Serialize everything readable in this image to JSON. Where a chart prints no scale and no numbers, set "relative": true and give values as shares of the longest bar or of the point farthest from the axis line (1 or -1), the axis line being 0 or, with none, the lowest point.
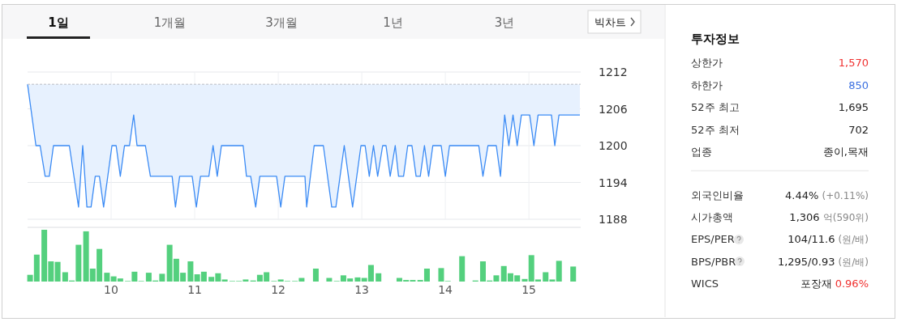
{
  "chart_data": [
    {
      "type": "other",
      "annotations": [
        "1일",
        "1개월",
        "3개월",
        "1년",
        "3년",
        "빅차트"
      ]
    },
    {
      "type": "line",
      "color": "#3b8bf5",
      "xlim": [
        9,
        15.62
      ],
      "xticks": [
        10,
        11,
        12,
        13,
        14,
        15
      ],
      "ylim": [
        1188,
        1212
      ],
      "yticks": [
        1188,
        1194,
        1200,
        1206,
        1212
      ],
      "grid": true,
      "tick_labels": "y",
      "ref_lines": [
        {
          "axis": "y",
          "value": 1210,
          "line_style": "dashed",
          "color": "#b8bcc4"
        }
      ],
      "x": [
        9.0,
        9.1,
        9.15,
        9.21,
        9.26,
        9.31,
        9.5,
        9.61,
        9.66,
        9.71,
        9.76,
        9.81,
        9.86,
        9.91,
        10.01,
        10.06,
        10.11,
        10.16,
        10.22,
        10.27,
        10.31,
        10.41,
        10.47,
        10.73,
        10.77,
        10.82,
        10.97,
        11.02,
        11.07,
        11.17,
        11.22,
        11.27,
        11.32,
        11.58,
        11.62,
        11.67,
        11.73,
        11.78,
        11.98,
        12.03,
        12.08,
        12.32,
        12.34,
        12.43,
        12.54,
        12.64,
        12.69,
        12.79,
        12.89,
        12.99,
        13.04,
        13.09,
        13.14,
        13.19,
        13.25,
        13.29,
        13.34,
        13.4,
        13.44,
        13.5,
        13.55,
        13.6,
        13.65,
        13.7,
        13.75,
        13.8,
        13.85,
        13.95,
        14.0,
        14.05,
        14.4,
        14.45,
        14.51,
        14.61,
        14.66,
        14.71,
        14.76,
        14.81,
        14.86,
        14.91,
        15.01,
        15.06,
        15.11,
        15.27,
        15.31,
        15.36,
        15.61
      ],
      "values": [
        1210,
        1200,
        1200,
        1195,
        1195,
        1200,
        1200,
        1190,
        1200,
        1190,
        1190,
        1195,
        1195,
        1190,
        1200,
        1200,
        1195,
        1200,
        1200,
        1205,
        1200,
        1200,
        1195,
        1195,
        1190,
        1195,
        1195,
        1190,
        1195,
        1195,
        1200,
        1195,
        1200,
        1200,
        1195,
        1195,
        1190,
        1195,
        1195,
        1190,
        1195,
        1195,
        1190,
        1200,
        1200,
        1190,
        1190,
        1200,
        1190,
        1200,
        1200,
        1195,
        1200,
        1195,
        1200,
        1200,
        1195,
        1200,
        1195,
        1195,
        1200,
        1200,
        1195,
        1195,
        1200,
        1195,
        1200,
        1200,
        1195,
        1200,
        1200,
        1195,
        1200,
        1200,
        1195,
        1205,
        1200,
        1205,
        1200,
        1205,
        1205,
        1200,
        1205,
        1205,
        1200,
        1205,
        1205
      ]
    },
    {
      "type": "bar",
      "color": "#54d07e",
      "relative": true,
      "xlim": [
        9,
        15.62
      ],
      "xticks": [
        10,
        11,
        12,
        13,
        14,
        15
      ],
      "tick_labels": "x",
      "x": [
        9.03,
        9.11,
        9.2,
        9.28,
        9.36,
        9.45,
        9.53,
        9.61,
        9.7,
        9.78,
        9.86,
        9.95,
        10.03,
        10.11,
        10.2,
        10.28,
        10.36,
        10.45,
        10.53,
        10.61,
        10.7,
        10.78,
        10.86,
        10.95,
        11.03,
        11.11,
        11.2,
        11.28,
        11.36,
        11.45,
        11.53,
        11.61,
        11.7,
        11.78,
        11.86,
        11.95,
        12.03,
        12.11,
        12.2,
        12.28,
        12.45,
        12.61,
        12.7,
        12.78,
        12.86,
        12.95,
        13.03,
        13.11,
        13.2,
        13.45,
        13.53,
        13.61,
        13.7,
        13.78,
        13.95,
        14.03,
        14.2,
        14.36,
        14.45,
        14.53,
        14.61,
        14.7,
        14.78,
        14.86,
        14.95,
        15.03,
        15.11,
        15.2,
        15.28,
        15.36,
        15.53
      ],
      "values": [
        0.13,
        0.52,
        1,
        0.39,
        0.38,
        0.18,
        0.02,
        0.71,
        0.97,
        0.25,
        0.63,
        0.17,
        0.1,
        0.06,
        0.01,
        0.19,
        0.01,
        0.17,
        0.02,
        0.15,
        0.71,
        0.44,
        0.17,
        0.39,
        0.14,
        0.19,
        0.09,
        0.16,
        0.04,
        0.01,
        0.01,
        0.04,
        0.02,
        0.13,
        0.18,
        0.01,
        0.04,
        0.01,
        0.01,
        0.07,
        0.25,
        0.07,
        0.01,
        0.12,
        0.06,
        0.08,
        0.07,
        0.32,
        0.16,
        0.07,
        0.03,
        0.03,
        0.03,
        0.25,
        0.26,
        0.01,
        0.49,
        0.02,
        0.39,
        0.02,
        0.12,
        0.3,
        0.16,
        0.12,
        0.05,
        0.51,
        0.04,
        0.18,
        0.04,
        0.4,
        0.29
      ]
    },
    {
      "type": "other",
      "title": "투자정보",
      "annotations": [
        "상한가",
        "1,570",
        "하한가",
        "850",
        "52주 최고",
        "1,695",
        "52주 최저",
        "702",
        "업종",
        "종이,목재",
        "외국인비율",
        "4.44% (+0.11%)",
        "시가총액",
        "1,306 억(590위)",
        "EPS/PER",
        "104/11.6 (원/배)",
        "BPS/PBR",
        "1,295/0.93 (원/배)",
        "WICS",
        "포장재 0.96%"
      ],
      "colors": [
        "#f0302f",
        "#3a6fe0",
        "#222222",
        "#222222",
        "#222222",
        "#888888",
        "#888888",
        "#888888",
        "#888888",
        "#f0302f"
      ]
    }
  ]
}
